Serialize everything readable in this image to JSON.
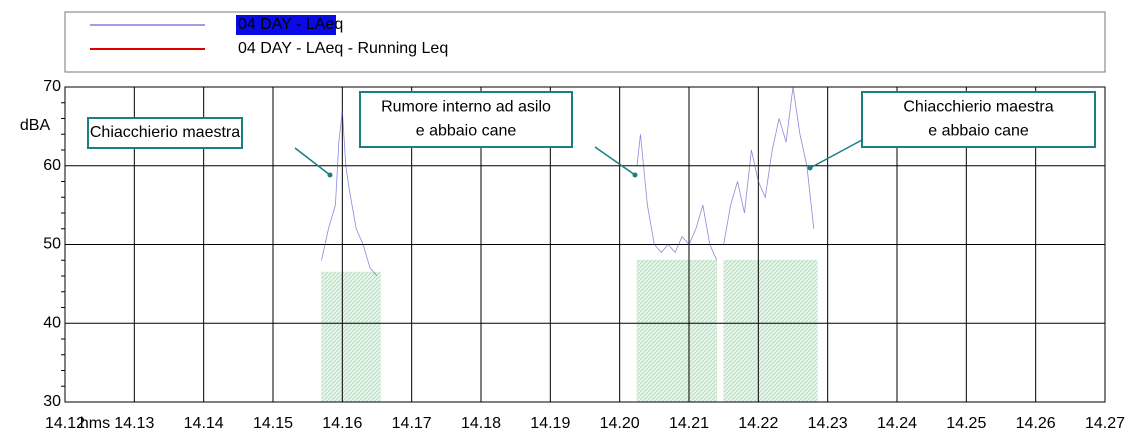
{
  "chart_data": {
    "type": "line",
    "y_label": "dBA",
    "x_label": "hms",
    "xlim": [
      14.12,
      14.27
    ],
    "xticks": [
      14.12,
      14.13,
      14.14,
      14.15,
      14.16,
      14.17,
      14.18,
      14.19,
      {
        "value": 14.2,
        "label": "14.20"
      },
      14.21,
      14.22,
      14.23,
      14.24,
      14.25,
      14.26,
      14.27
    ],
    "ylim": [
      30,
      70
    ],
    "yticks": [
      30,
      40,
      50,
      60,
      70
    ],
    "grid": true,
    "x": [
      14.157,
      14.158,
      14.159,
      14.1595,
      14.16,
      14.1605,
      14.161,
      14.162,
      14.163,
      14.164,
      14.165,
      14.18,
      14.2025,
      14.203,
      14.204,
      14.205,
      14.206,
      14.207,
      14.208,
      14.209,
      14.21,
      14.211,
      14.212,
      14.213,
      14.214,
      14.2145,
      14.215,
      14.216,
      14.217,
      14.218,
      14.219,
      14.22,
      14.221,
      14.222,
      14.223,
      14.224,
      14.225,
      14.226,
      14.227,
      14.228
    ],
    "series": [
      {
        "name": "04 DAY - LAeq",
        "color": "#3c3cc8",
        "values": [
          48,
          52,
          55,
          63,
          67,
          60,
          57,
          52,
          50,
          47,
          46,
          null,
          60,
          64,
          55,
          50,
          49,
          50,
          49,
          51,
          50,
          52,
          55,
          50,
          48,
          null,
          50,
          55,
          58,
          54,
          62,
          58,
          56,
          62,
          66,
          63,
          70,
          64,
          60,
          52
        ]
      },
      {
        "name": "04 DAY - LAeq - Running Leq",
        "color": "#e00000",
        "values": [
          null,
          null,
          null,
          null,
          null,
          null,
          null,
          null,
          null,
          null,
          null,
          null,
          null,
          null,
          null,
          null,
          null,
          null,
          null,
          null,
          null,
          null,
          null,
          null,
          null,
          null,
          null,
          null,
          null,
          null,
          null,
          null,
          null,
          null,
          null,
          null,
          null,
          null,
          null,
          null
        ]
      }
    ],
    "shaded_periods": {
      "color": "#c6ebcf",
      "periods": [
        {
          "x": [
            14.157,
            14.1655
          ],
          "y": 46.5
        },
        {
          "x": [
            14.2025,
            14.214
          ],
          "y": 48
        },
        {
          "x": [
            14.215,
            14.2285
          ],
          "y": 48
        }
      ]
    },
    "annotations": [
      {
        "lines": [
          "Chiacchierio maestra"
        ]
      },
      {
        "lines": [
          "Rumore interno ad asilo",
          "e abbaio cane"
        ]
      },
      {
        "lines": [
          "Chiacchierio maestra",
          "e abbaio cane"
        ]
      }
    ]
  }
}
